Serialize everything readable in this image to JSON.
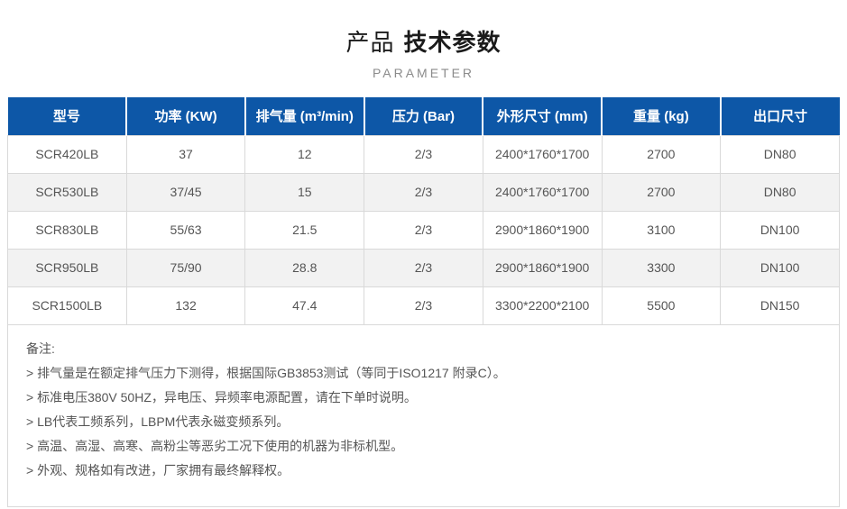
{
  "page": {
    "title_regular": "产品",
    "title_bold": "技术参数",
    "subtitle": "PARAMETER"
  },
  "table": {
    "headers": [
      "型号",
      "功率 (KW)",
      "排气量 (m³/min)",
      "压力 (Bar)",
      "外形尺寸 (mm)",
      "重量 (kg)",
      "出口尺寸"
    ],
    "rows": [
      [
        "SCR420LB",
        "37",
        "12",
        "2/3",
        "2400*1760*1700",
        "2700",
        "DN80"
      ],
      [
        "SCR530LB",
        "37/45",
        "15",
        "2/3",
        "2400*1760*1700",
        "2700",
        "DN80"
      ],
      [
        "SCR830LB",
        "55/63",
        "21.5",
        "2/3",
        "2900*1860*1900",
        "3100",
        "DN100"
      ],
      [
        "SCR950LB",
        "75/90",
        "28.8",
        "2/3",
        "2900*1860*1900",
        "3300",
        "DN100"
      ],
      [
        "SCR1500LB",
        "132",
        "47.4",
        "2/3",
        "3300*2200*2100",
        "5500",
        "DN150"
      ]
    ]
  },
  "notes": {
    "title": "备注:",
    "items": [
      "> 排气量是在额定排气压力下测得，根据国际GB3853测试（等同于ISO1217 附录C）。",
      "> 标准电压380V 50HZ，异电压、异频率电源配置，请在下单时说明。",
      "> LB代表工频系列，LBPM代表永磁变频系列。",
      "> 高温、高湿、高寒、高粉尘等恶劣工况下使用的机器为非标机型。",
      "> 外观、规格如有改进，厂家拥有最终解释权。"
    ]
  },
  "colors": {
    "header_bg": "#0d57a7",
    "row_alt_bg": "#f2f2f2",
    "table_border": "#d9d9d9",
    "cell_text": "#555555",
    "subtitle_text": "#8b8b8b"
  }
}
